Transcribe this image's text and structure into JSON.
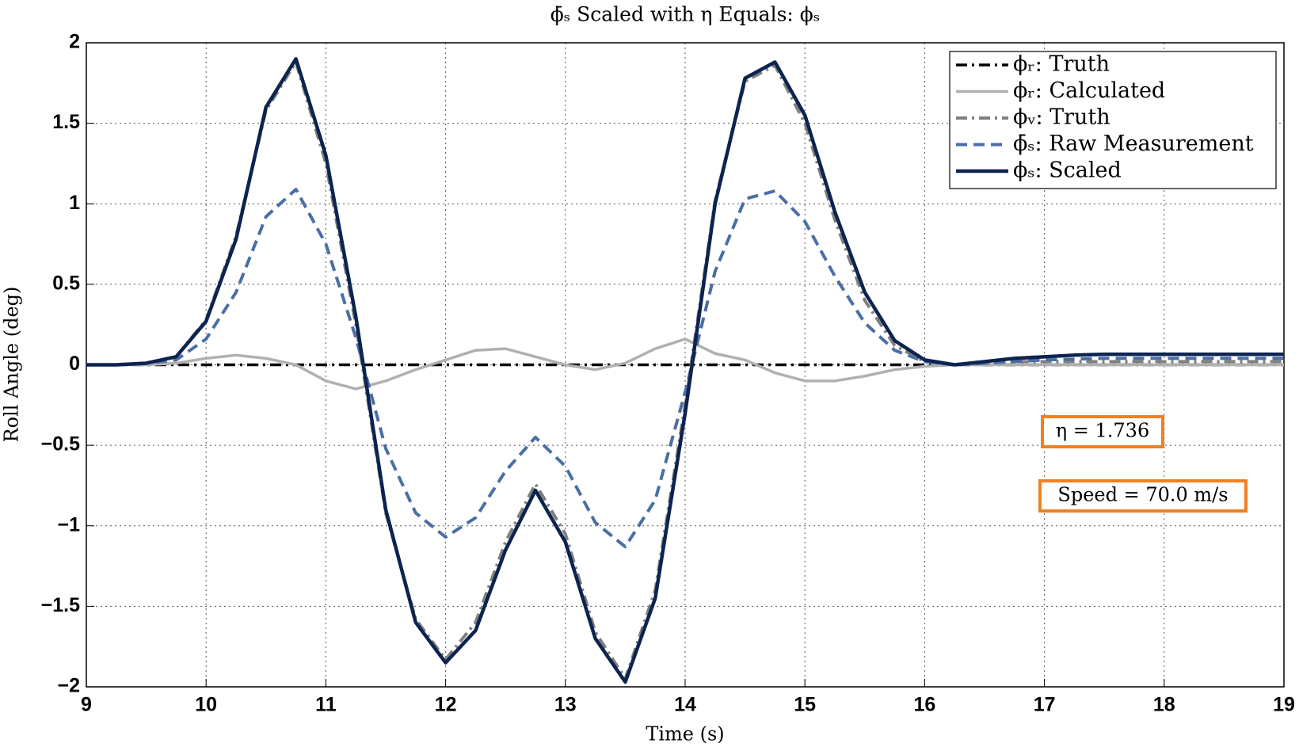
{
  "chart_data": {
    "type": "line",
    "title": "ϕ̄ₛ Scaled with η Equals: ϕₛ",
    "x_label": "Time (s)",
    "y_label": "Roll Angle (deg)",
    "x": [
      9,
      9.25,
      9.5,
      9.75,
      10,
      10.25,
      10.5,
      10.75,
      11,
      11.25,
      11.5,
      11.75,
      12,
      12.25,
      12.5,
      12.75,
      13,
      13.25,
      13.5,
      13.75,
      14,
      14.25,
      14.5,
      14.75,
      15,
      15.25,
      15.5,
      15.75,
      16,
      16.25,
      16.5,
      16.75,
      17,
      17.25,
      17.5,
      17.75,
      18,
      18.25,
      18.5,
      18.75,
      19
    ],
    "series": [
      {
        "name": "ϕᵣ: Truth",
        "color": "#000000",
        "style": "dash-dot",
        "width": 3.5,
        "values": [
          0,
          0,
          0,
          0,
          0,
          0,
          0,
          0,
          0,
          0,
          0,
          0,
          0,
          0,
          0,
          0,
          0,
          0,
          0,
          0,
          0,
          0,
          0,
          0,
          0,
          0,
          0,
          0,
          0,
          0,
          0,
          0,
          0,
          0,
          0,
          0,
          0,
          0,
          0,
          0,
          0
        ]
      },
      {
        "name": "ϕᵣ: Calculated",
        "color": "#b0b0b0",
        "style": "solid",
        "width": 3.5,
        "values": [
          0,
          0,
          0,
          0.01,
          0.04,
          0.06,
          0.04,
          0,
          -0.1,
          -0.15,
          -0.1,
          -0.03,
          0.03,
          0.09,
          0.1,
          0.05,
          0,
          -0.03,
          0.01,
          0.1,
          0.16,
          0.07,
          0.03,
          -0.05,
          -0.1,
          -0.1,
          -0.07,
          -0.03,
          -0.01,
          0,
          0,
          0,
          0,
          0,
          0,
          0,
          0,
          0,
          0,
          0,
          0
        ]
      },
      {
        "name": "ϕᵥ: Truth",
        "color": "#808080",
        "style": "dash-dot",
        "width": 4,
        "values": [
          0,
          0,
          0.01,
          0.05,
          0.28,
          0.8,
          1.58,
          1.88,
          1.25,
          0.25,
          -0.92,
          -1.58,
          -1.83,
          -1.6,
          -1.1,
          -0.74,
          -1.05,
          -1.66,
          -1.95,
          -1.4,
          -0.25,
          1.02,
          1.76,
          1.86,
          1.5,
          0.9,
          0.4,
          0.12,
          0.02,
          0,
          0.01,
          0.02,
          0.02,
          0.02,
          0.02,
          0.02,
          0.02,
          0.02,
          0.02,
          0.02,
          0.02
        ]
      },
      {
        "name": "ϕ̄ₛ: Raw Measurement",
        "color": "#4a6fa5",
        "style": "dash",
        "width": 4,
        "values": [
          0,
          0,
          0.01,
          0.03,
          0.16,
          0.45,
          0.92,
          1.09,
          0.75,
          0.17,
          -0.52,
          -0.92,
          -1.07,
          -0.95,
          -0.66,
          -0.45,
          -0.63,
          -0.98,
          -1.13,
          -0.84,
          -0.17,
          0.58,
          1.03,
          1.08,
          0.89,
          0.55,
          0.26,
          0.09,
          0.02,
          0,
          0.01,
          0.02,
          0.03,
          0.035,
          0.04,
          0.04,
          0.04,
          0.04,
          0.04,
          0.04,
          0.04
        ]
      },
      {
        "name": "ϕₛ: Scaled",
        "color": "#0d2350",
        "style": "solid",
        "width": 4.5,
        "values": [
          0,
          0,
          0.01,
          0.05,
          0.27,
          0.78,
          1.6,
          1.9,
          1.3,
          0.3,
          -0.9,
          -1.6,
          -1.85,
          -1.65,
          -1.15,
          -0.78,
          -1.1,
          -1.7,
          -1.97,
          -1.45,
          -0.3,
          1.0,
          1.78,
          1.88,
          1.55,
          0.95,
          0.45,
          0.15,
          0.03,
          0,
          0.02,
          0.04,
          0.05,
          0.06,
          0.065,
          0.065,
          0.065,
          0.065,
          0.065,
          0.065,
          0.065
        ]
      }
    ],
    "xlim": [
      9,
      19
    ],
    "xticks": [
      9,
      10,
      11,
      12,
      13,
      14,
      15,
      16,
      17,
      18,
      19
    ],
    "ylim": [
      -2,
      2
    ],
    "yticks": [
      {
        "value": -2,
        "label": "−2"
      },
      {
        "value": -1.5,
        "label": "−1.5"
      },
      {
        "value": -1,
        "label": "−1"
      },
      {
        "value": -0.5,
        "label": "−0.5"
      },
      0,
      0.5,
      1,
      1.5,
      2
    ],
    "grid": true,
    "legend": "upper right",
    "annotations": [
      "η = 1.736",
      "Speed = 70.0 m/s"
    ],
    "annotation_color": "#f08020"
  }
}
